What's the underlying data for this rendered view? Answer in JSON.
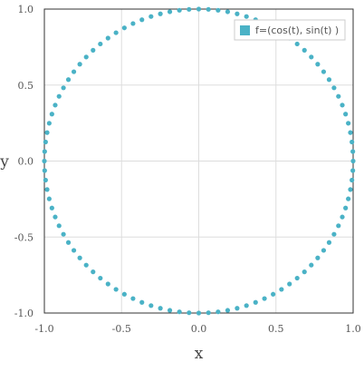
{
  "chart_data": {
    "type": "scatter",
    "xlabel": "x",
    "ylabel": "y",
    "xlim": [
      -1.0,
      1.0
    ],
    "ylim": [
      -1.0,
      1.0
    ],
    "x_ticks": [
      "-1.0",
      "-0.5",
      "0.0",
      "0.5",
      "1.0"
    ],
    "y_ticks": [
      "1.0",
      "0.5",
      "0.0",
      "-0.5",
      "-1.0"
    ],
    "grid": true,
    "legend_position": "top-right",
    "series": [
      {
        "name": "f=(cos(t), sin(t) )",
        "color": "#4ab2c6",
        "parametric": "x = cos(t), y = sin(t)",
        "t_range": [
          0,
          6.2832
        ],
        "point_count": 100
      }
    ]
  }
}
